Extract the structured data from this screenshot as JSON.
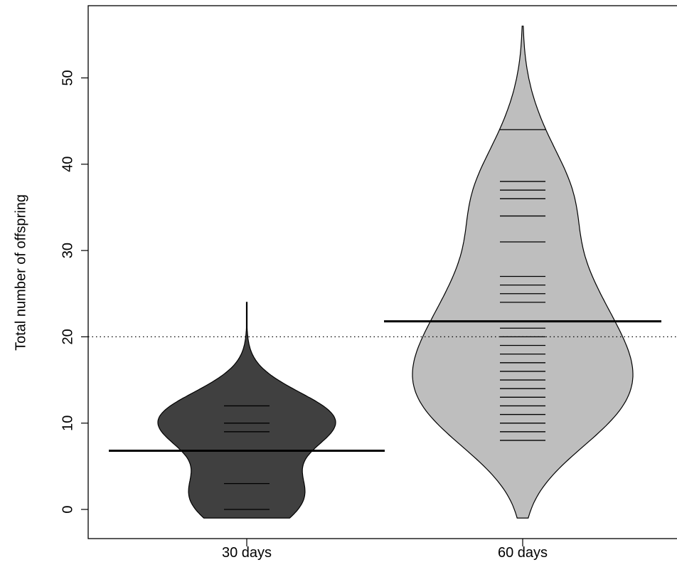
{
  "chart_data": {
    "type": "beanplot",
    "title": "",
    "xlabel": "",
    "ylabel": "Total number of offspring",
    "ylim": [
      -4,
      58
    ],
    "y_ticks": [
      0,
      10,
      20,
      30,
      40,
      50
    ],
    "overall_reference_line": 20,
    "categories": [
      "30 days",
      "60 days"
    ],
    "groups": [
      {
        "label": "30 days",
        "color": "#404040",
        "mean": 6.8,
        "observations": [
          0,
          3,
          9,
          10,
          12
        ],
        "density_range": [
          -1,
          24
        ]
      },
      {
        "label": "60 days",
        "color": "#bebebe",
        "mean": 21.8,
        "observations": [
          8,
          9,
          10,
          11,
          12,
          13,
          14,
          15,
          16,
          17,
          18,
          19,
          20,
          21,
          24,
          25,
          26,
          27,
          31,
          34,
          36,
          37,
          38,
          44
        ],
        "density_range": [
          -1,
          56
        ]
      }
    ]
  },
  "colors": {
    "axis": "#000000",
    "background": "#ffffff"
  }
}
